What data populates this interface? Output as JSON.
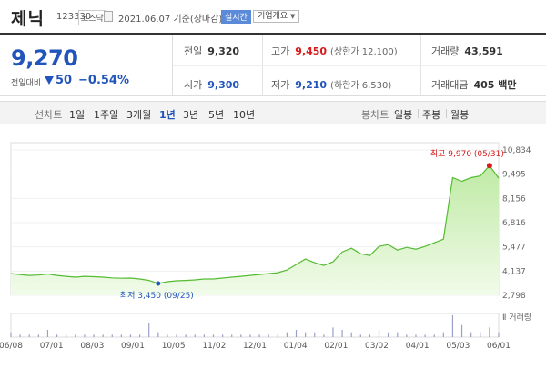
{
  "header": {
    "name": "제닉",
    "code": "123330",
    "market": "코스닥",
    "date": "2021.06.07 기준(장마감)",
    "realtime_label": "실시간",
    "company_label": "기업개요"
  },
  "summary": {
    "price": "9,270",
    "change_label": "전일대비",
    "change_value": "50",
    "change_pct": "−0.54%",
    "prev_close": {
      "label": "전일",
      "value": "9,320"
    },
    "open": {
      "label": "시가",
      "value": "9,300"
    },
    "high": {
      "label": "고가",
      "value": "9,450",
      "sub": "(상한가 12,100)"
    },
    "low": {
      "label": "저가",
      "value": "9,210",
      "sub": "(하한가 6,530)"
    },
    "volume": {
      "label": "거래량",
      "value": "43,591"
    },
    "amount": {
      "label": "거래대금",
      "value": "405 백만"
    }
  },
  "tabs": {
    "line_label": "선차트",
    "periods": [
      "1일",
      "1주일",
      "3개월",
      "1년",
      "3년",
      "5년",
      "10년"
    ],
    "active_period": "1년",
    "candle_label": "봉차트",
    "candles": [
      "일봉",
      "주봉",
      "월봉"
    ]
  },
  "colors": {
    "line": "#55bb33",
    "fill_top": "#bfeaa4",
    "fill_bottom": "#f1fbea",
    "volume": "#9aa0c8",
    "high": "#d71b1b",
    "low": "#2255bb"
  },
  "chart_data": {
    "type": "area",
    "y_ticks": [
      "10,834",
      "9,495",
      "8,156",
      "6,816",
      "5,477",
      "4,137",
      "2,798"
    ],
    "ylim": [
      2798,
      10834
    ],
    "x_ticks": [
      "06/08",
      "07/01",
      "08/03",
      "09/01",
      "10/05",
      "11/02",
      "12/01",
      "01/04",
      "02/01",
      "03/02",
      "04/01",
      "05/03",
      "06/01"
    ],
    "high_annotation": "최고 9,970 (05/31)",
    "low_annotation": "최저 3,450 (09/25)",
    "volume_legend": "거래량",
    "x": [
      "06/08",
      "06/15",
      "06/22",
      "06/29",
      "07/06",
      "07/13",
      "07/20",
      "07/27",
      "08/03",
      "08/10",
      "08/17",
      "08/24",
      "08/31",
      "09/07",
      "09/14",
      "09/21",
      "09/25",
      "09/28",
      "10/05",
      "10/12",
      "10/19",
      "10/26",
      "11/02",
      "11/09",
      "11/16",
      "11/23",
      "11/30",
      "12/07",
      "12/14",
      "12/21",
      "12/28",
      "01/04",
      "01/11",
      "01/18",
      "01/25",
      "02/01",
      "02/08",
      "02/15",
      "02/22",
      "03/02",
      "03/09",
      "03/16",
      "03/23",
      "03/30",
      "04/06",
      "04/13",
      "04/20",
      "04/27",
      "05/03",
      "05/10",
      "05/17",
      "05/24",
      "05/31",
      "06/07"
    ],
    "values": [
      4000,
      3950,
      3900,
      3920,
      3980,
      3900,
      3850,
      3800,
      3850,
      3830,
      3800,
      3760,
      3740,
      3750,
      3700,
      3620,
      3450,
      3550,
      3600,
      3620,
      3650,
      3700,
      3700,
      3750,
      3800,
      3850,
      3900,
      3950,
      4000,
      4050,
      4200,
      4500,
      4800,
      4600,
      4450,
      4650,
      5200,
      5400,
      5100,
      5000,
      5500,
      5600,
      5300,
      5450,
      5350,
      5500,
      5700,
      5900,
      9300,
      9100,
      9300,
      9400,
      9970,
      9270
    ],
    "volume": [
      2,
      1,
      1,
      1,
      3,
      1,
      1,
      1,
      1,
      1,
      1,
      1,
      1,
      1,
      1,
      6,
      2,
      1,
      1,
      1,
      1,
      1,
      1,
      1,
      1,
      1,
      1,
      1,
      1,
      1,
      2,
      3,
      2,
      2,
      1,
      4,
      3,
      2,
      1,
      1,
      3,
      2,
      2,
      1,
      1,
      1,
      1,
      2,
      9,
      5,
      2,
      2,
      4,
      2
    ]
  }
}
